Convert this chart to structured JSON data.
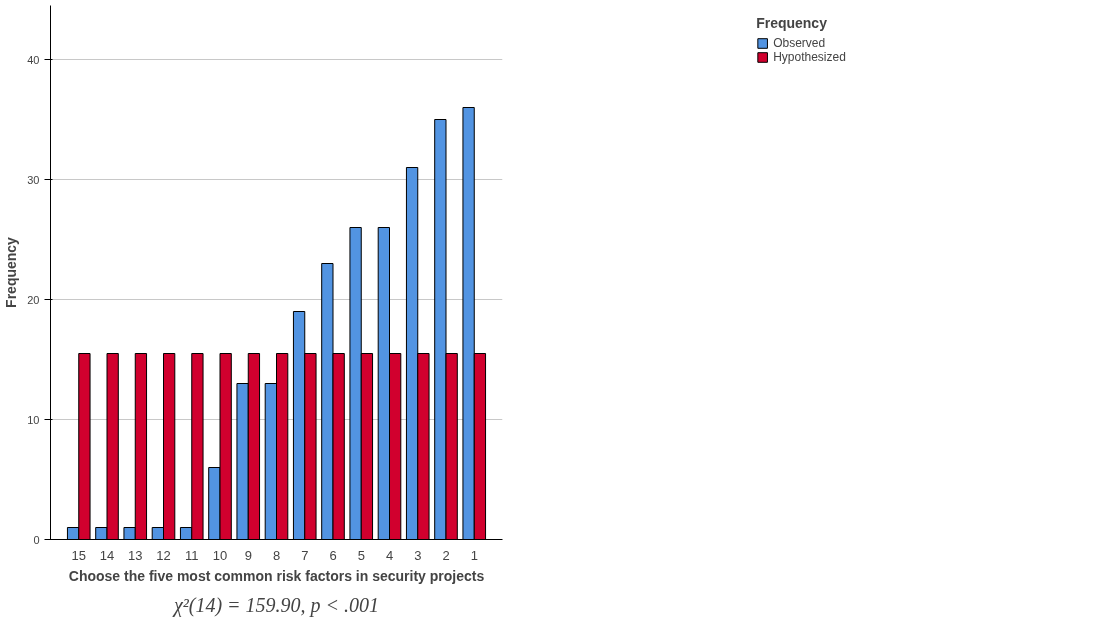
{
  "chart_data": {
    "type": "bar",
    "xlabel": "Choose the five most common risk factors in security projects",
    "ylabel": "Frequency",
    "legend_title": "Frequency",
    "legend": "top right",
    "categories": [
      "15",
      "14",
      "13",
      "12",
      "11",
      "10",
      "9",
      "8",
      "7",
      "6",
      "5",
      "4",
      "3",
      "2",
      "1"
    ],
    "series": [
      {
        "name": "Observed",
        "color": "#5294e2",
        "values": [
          1,
          1,
          1,
          1,
          1,
          6,
          13,
          13,
          19,
          23,
          26,
          26,
          31,
          35,
          36
        ]
      },
      {
        "name": "Hypothesized",
        "color": "#d1002e",
        "values": [
          15.5,
          15.5,
          15.5,
          15.5,
          15.5,
          15.5,
          15.5,
          15.5,
          15.5,
          15.5,
          15.5,
          15.5,
          15.5,
          15.5,
          15.5
        ]
      }
    ],
    "ylim": [
      0,
      44.5
    ],
    "yticks": [
      0,
      10,
      20,
      30,
      40
    ],
    "grid": "y",
    "annotations": [
      "χ²(14) = 159.90, p < .001"
    ]
  }
}
